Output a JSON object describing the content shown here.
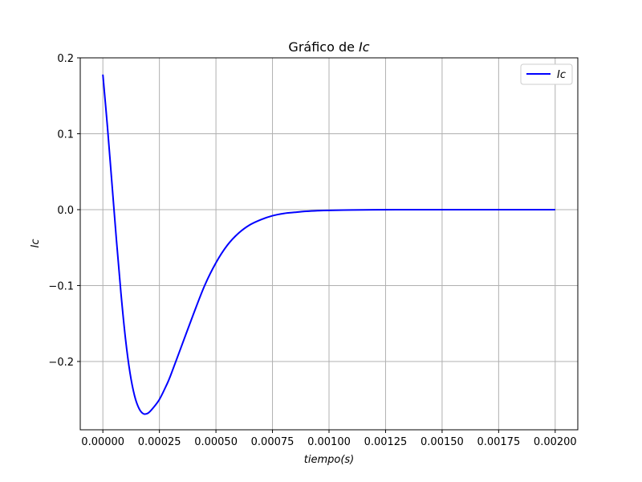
{
  "chart_data": {
    "type": "line",
    "title_prefix": "Gráfico de ",
    "title_var": "Ic",
    "xlabel": "tiempo(s)",
    "ylabel": "Ic",
    "xlim": [
      -0.0001,
      0.0021
    ],
    "ylim": [
      -0.29,
      0.2
    ],
    "x_ticks": [
      0.0,
      0.00025,
      0.0005,
      0.00075,
      0.001,
      0.00125,
      0.0015,
      0.00175,
      0.002
    ],
    "x_tick_labels": [
      "0.00000",
      "0.00025",
      "0.00050",
      "0.00075",
      "0.00100",
      "0.00125",
      "0.00150",
      "0.00175",
      "0.00200"
    ],
    "y_ticks": [
      -0.2,
      -0.1,
      0.0,
      0.1,
      0.2
    ],
    "y_tick_labels": [
      "−0.2",
      "−0.1",
      "0.0",
      "0.1",
      "0.2"
    ],
    "grid": true,
    "legend_position": "top-right",
    "series": [
      {
        "name": "Ic",
        "color": "#0000ff",
        "x": [
          0.0,
          2e-05,
          4e-05,
          6e-05,
          8e-05,
          0.0001,
          0.00012,
          0.00014,
          0.00016,
          0.00018,
          0.0002,
          0.00022,
          0.00025,
          0.00028,
          0.0003,
          0.00035,
          0.0004,
          0.00045,
          0.0005,
          0.00055,
          0.0006,
          0.00065,
          0.0007,
          0.00075,
          0.0008,
          0.00085,
          0.0009,
          0.00095,
          0.001,
          0.0011,
          0.0012,
          0.0013,
          0.0014,
          0.0015,
          0.0016,
          0.0017,
          0.0018,
          0.0019,
          0.002
        ],
        "y": [
          0.178,
          0.11,
          0.035,
          -0.04,
          -0.11,
          -0.17,
          -0.215,
          -0.245,
          -0.262,
          -0.269,
          -0.268,
          -0.262,
          -0.25,
          -0.232,
          -0.218,
          -0.178,
          -0.138,
          -0.1,
          -0.07,
          -0.047,
          -0.031,
          -0.02,
          -0.013,
          -0.008,
          -0.005,
          -0.0035,
          -0.0022,
          -0.0014,
          -0.0009,
          -0.0004,
          -0.00017,
          -7e-05,
          -3e-05,
          -1e-05,
          0.0,
          0.0,
          0.0,
          0.0,
          0.0
        ]
      }
    ]
  }
}
